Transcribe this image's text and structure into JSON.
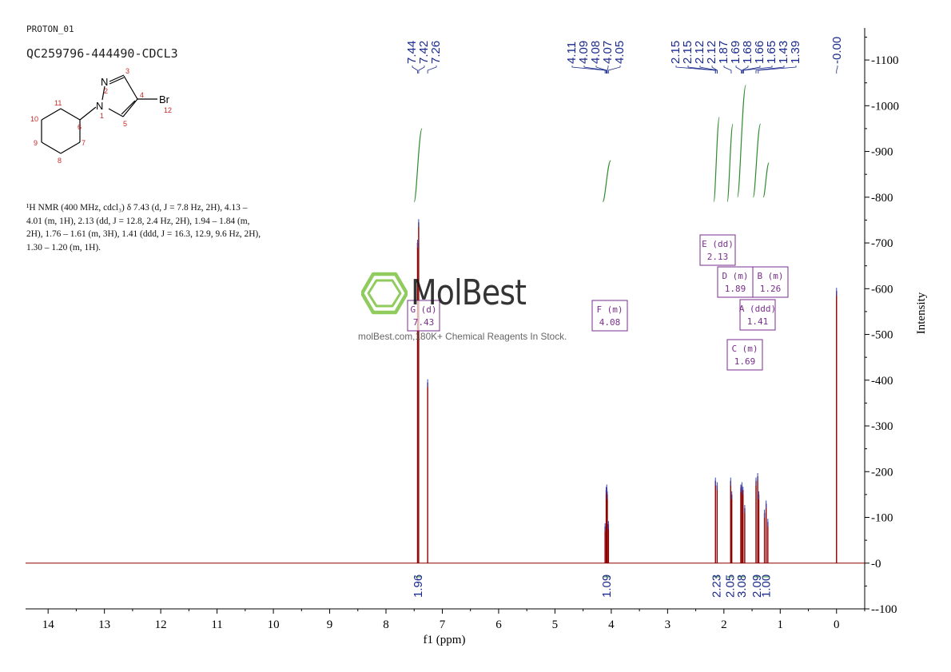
{
  "header": {
    "sample_name": "PROTON_01",
    "experiment_id": "QC259796-444490-CDCL3"
  },
  "structure": {
    "atoms": [
      "N",
      "N",
      "Br"
    ],
    "atom_numbers": [
      "1",
      "2",
      "3",
      "4",
      "5",
      "6",
      "7",
      "8",
      "9",
      "10",
      "11",
      "12"
    ]
  },
  "description": {
    "line1": "¹H NMR (400 MHz, cdcl₃) δ 7.43 (d, J = 7.8 Hz, 2H), 4.13 –",
    "line2": "4.01 (m, 1H), 2.13 (dd, J = 12.8, 2.4 Hz, 2H), 1.94 – 1.84 (m,",
    "line3": "2H), 1.76 – 1.61 (m, 3H), 1.41 (ddd, J = 16.3, 12.9, 9.6 Hz, 2H),",
    "line4": "1.30 – 1.20 (m, 1H)."
  },
  "watermark": {
    "name": "MolBest",
    "tagline": "molBest.com,180K+ Chemical Reagents In Stock.",
    "logo_color": "#7dc242"
  },
  "colors": {
    "spectrum": "#8b0000",
    "integral": "#2e8b2e",
    "peak_label": "#1a2a8c",
    "multiplet_box": "#7a2d8c",
    "axis": "#000000"
  },
  "chart_data": {
    "type": "line",
    "xlabel": "f1 (ppm)",
    "ylabel": "Intensity",
    "xlim": [
      14.4,
      -0.5
    ],
    "ylim": [
      -100,
      1170
    ],
    "x_ticks": [
      14,
      13,
      12,
      11,
      10,
      9,
      8,
      7,
      6,
      5,
      4,
      3,
      2,
      1,
      0
    ],
    "y_ticks": [
      -100,
      0,
      100,
      200,
      300,
      400,
      500,
      600,
      700,
      800,
      900,
      1000,
      1100
    ],
    "peaks": [
      {
        "ppm": 7.44,
        "height": 700
      },
      {
        "ppm": 7.42,
        "height": 745
      },
      {
        "ppm": 7.26,
        "height": 395
      },
      {
        "ppm": 4.11,
        "height": 80
      },
      {
        "ppm": 4.09,
        "height": 160
      },
      {
        "ppm": 4.08,
        "height": 165
      },
      {
        "ppm": 4.07,
        "height": 150
      },
      {
        "ppm": 4.05,
        "height": 85
      },
      {
        "ppm": 2.15,
        "height": 180
      },
      {
        "ppm": 2.12,
        "height": 170
      },
      {
        "ppm": 1.88,
        "height": 180
      },
      {
        "ppm": 1.86,
        "height": 150
      },
      {
        "ppm": 1.7,
        "height": 165
      },
      {
        "ppm": 1.68,
        "height": 170
      },
      {
        "ppm": 1.66,
        "height": 160
      },
      {
        "ppm": 1.63,
        "height": 120
      },
      {
        "ppm": 1.43,
        "height": 180
      },
      {
        "ppm": 1.4,
        "height": 190
      },
      {
        "ppm": 1.38,
        "height": 150
      },
      {
        "ppm": 1.28,
        "height": 110
      },
      {
        "ppm": 1.25,
        "height": 130
      },
      {
        "ppm": 1.22,
        "height": 90
      },
      {
        "ppm": 0.0,
        "height": 595
      }
    ],
    "peak_labels": [
      {
        "text": "7.44",
        "ppm": 7.44
      },
      {
        "text": "7.42",
        "ppm": 7.42
      },
      {
        "text": "7.26",
        "ppm": 7.26
      },
      {
        "text": "4.11",
        "ppm": 4.11
      },
      {
        "text": "4.09",
        "ppm": 4.09
      },
      {
        "text": "4.08",
        "ppm": 4.08
      },
      {
        "text": "4.07",
        "ppm": 4.07
      },
      {
        "text": "4.05",
        "ppm": 4.05
      },
      {
        "text": "2.15",
        "ppm": 2.15
      },
      {
        "text": "2.15",
        "ppm": 2.15
      },
      {
        "text": "2.12",
        "ppm": 2.12
      },
      {
        "text": "2.12",
        "ppm": 2.12
      },
      {
        "text": "1.87",
        "ppm": 1.87
      },
      {
        "text": "1.69",
        "ppm": 1.69
      },
      {
        "text": "1.68",
        "ppm": 1.68
      },
      {
        "text": "1.66",
        "ppm": 1.66
      },
      {
        "text": "1.65",
        "ppm": 1.65
      },
      {
        "text": "1.43",
        "ppm": 1.43
      },
      {
        "text": "1.39",
        "ppm": 1.39
      },
      {
        "text": "-0.00",
        "ppm": 0.0
      }
    ],
    "integrals": [
      {
        "from": 7.5,
        "to": 7.36,
        "value": "1.96",
        "y_start": 790,
        "y_end": 950
      },
      {
        "from": 4.15,
        "to": 4.01,
        "value": "1.09",
        "y_start": 790,
        "y_end": 880
      },
      {
        "from": 2.18,
        "to": 2.08,
        "value": "2.23",
        "y_start": 790,
        "y_end": 975
      },
      {
        "from": 1.94,
        "to": 1.84,
        "value": "2.05",
        "y_start": 790,
        "y_end": 960
      },
      {
        "from": 1.76,
        "to": 1.61,
        "value": "3.08",
        "y_start": 800,
        "y_end": 1045
      },
      {
        "from": 1.48,
        "to": 1.35,
        "value": "2.09",
        "y_start": 800,
        "y_end": 960
      },
      {
        "from": 1.3,
        "to": 1.2,
        "value": "1.00",
        "y_start": 800,
        "y_end": 875
      }
    ],
    "multiplets": [
      {
        "letter": "E",
        "type": "dd",
        "shift": "2.13"
      },
      {
        "letter": "D",
        "type": "m",
        "shift": "1.89"
      },
      {
        "letter": "B",
        "type": "m",
        "shift": "1.26"
      },
      {
        "letter": "A",
        "type": "ddd",
        "shift": "1.41"
      },
      {
        "letter": "C",
        "type": "m",
        "shift": "1.69"
      },
      {
        "letter": "F",
        "type": "m",
        "shift": "4.08"
      },
      {
        "letter": "G",
        "type": "d",
        "shift": "7.43"
      }
    ]
  }
}
